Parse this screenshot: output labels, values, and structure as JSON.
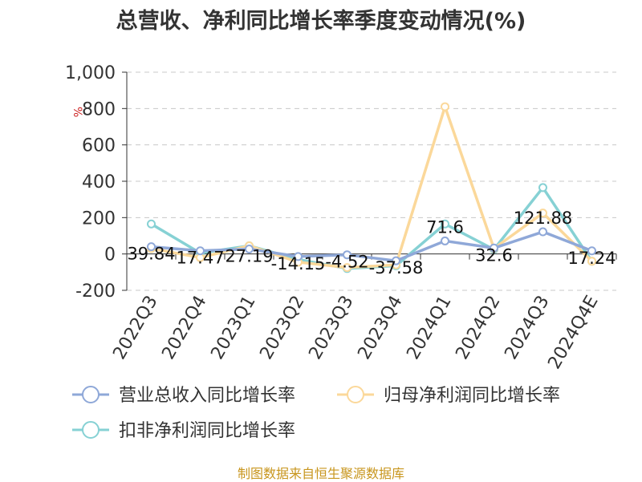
{
  "title": "总营收、净利同比增长率季度变动情况(%)",
  "source": "制图数据来自恒生聚源数据库",
  "chart_data": {
    "type": "line",
    "title": "总营收、净利同比增长率季度变动情况(%)",
    "ylabel": "%",
    "ylim": [
      -200,
      1000
    ],
    "yticks": [
      -200,
      0,
      200,
      400,
      600,
      800,
      1000
    ],
    "ytick_labels": [
      "-200",
      "0",
      "200",
      "400",
      "600",
      "800",
      "1,000"
    ],
    "categories": [
      "2022Q3",
      "2022Q4",
      "2023Q1",
      "2023Q2",
      "2023Q3",
      "2023Q4",
      "2024Q1",
      "2024Q2",
      "2024Q3",
      "2024Q4E"
    ],
    "grid": true,
    "legend_position": "bottom",
    "series": [
      {
        "name": "营业总收入同比增长率",
        "color": "#8fa8d8",
        "values": [
          39.84,
          17.47,
          27.19,
          -14.15,
          -4.52,
          -37.58,
          71.6,
          32.6,
          121.88,
          17.24
        ],
        "labels": [
          "39.84",
          "17.47",
          "27.19",
          "-14.15",
          "-4.52",
          "-37.58",
          "71.6",
          "32.6",
          "121.88",
          "17.24"
        ]
      },
      {
        "name": "归母净利润同比增长率",
        "color": "#fbd89a",
        "values": [
          30,
          -20,
          45,
          -45,
          -75,
          -60,
          810,
          30,
          225,
          -40
        ]
      },
      {
        "name": "扣非净利润同比增长率",
        "color": "#86d1d4",
        "values": [
          165,
          5,
          45,
          -30,
          -80,
          -65,
          165,
          25,
          365,
          -40
        ]
      }
    ]
  }
}
